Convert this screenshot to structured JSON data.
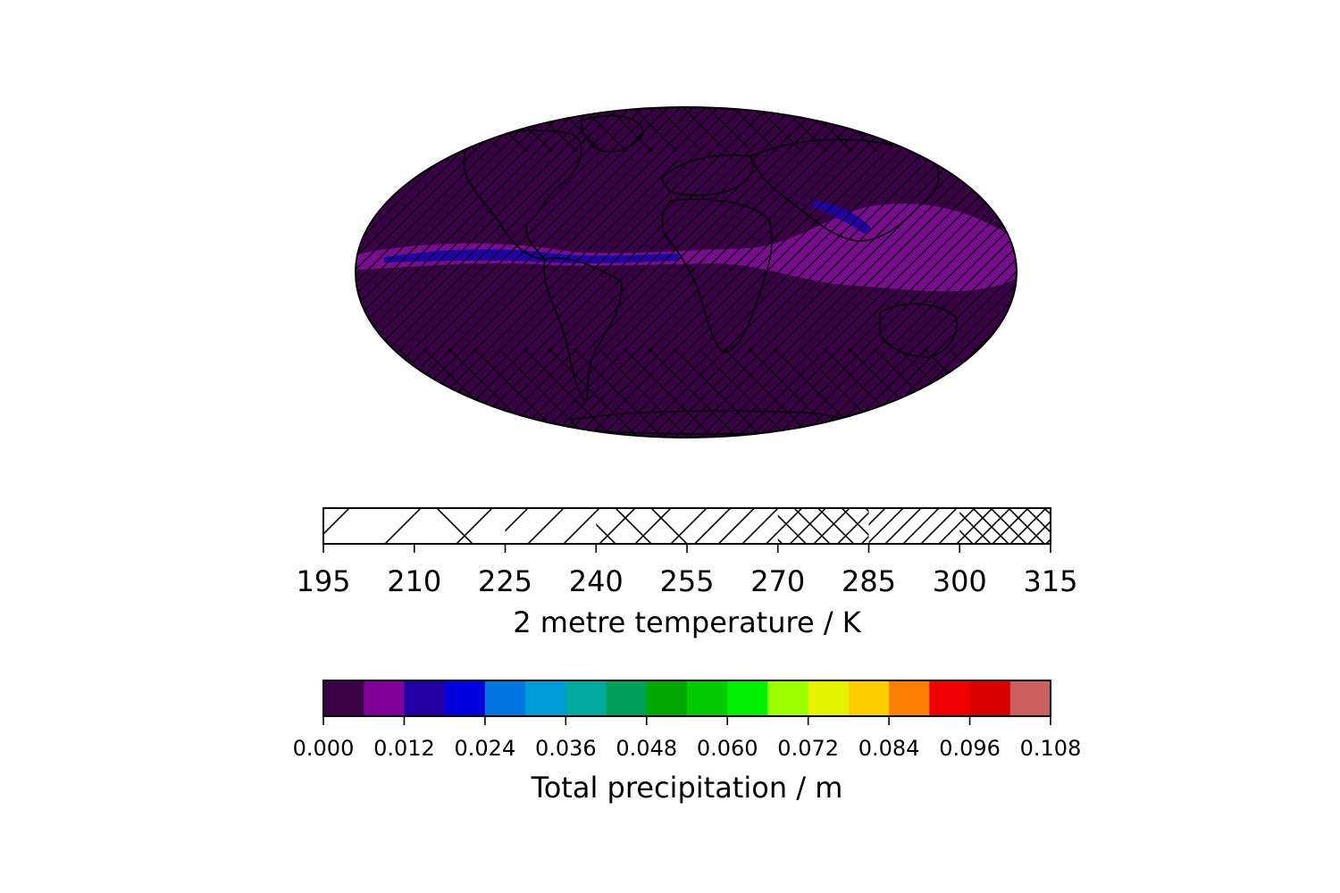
{
  "map": {
    "projection": "mollweide",
    "background_color": "#3a0046",
    "hatch_color": "#000000",
    "precip_band_color": "#800f96",
    "precip_high_color": "#2200a6"
  },
  "temperature_colorbar": {
    "label": "2 metre temperature / K",
    "ticks": [
      "195",
      "210",
      "225",
      "240",
      "255",
      "270",
      "285",
      "300",
      "315"
    ],
    "levels": [
      195,
      210,
      225,
      240,
      255,
      270,
      285,
      300,
      315
    ],
    "hatches": [
      "/",
      "x",
      "//",
      "xx",
      "///",
      "xxx",
      "////",
      "xxxx"
    ]
  },
  "precipitation_colorbar": {
    "label": "Total precipitation / m",
    "ticks": [
      "0.000",
      "0.012",
      "0.024",
      "0.036",
      "0.048",
      "0.060",
      "0.072",
      "0.084",
      "0.096",
      "0.108"
    ],
    "min": 0.0,
    "max": 0.108,
    "colors": [
      "#3b0046",
      "#80009a",
      "#2200a6",
      "#0000dc",
      "#0077e0",
      "#009ad6",
      "#00aa9e",
      "#00a05a",
      "#00a800",
      "#00cc00",
      "#00f000",
      "#9cff00",
      "#e6f200",
      "#ffcc00",
      "#ff8000",
      "#f00000",
      "#d80000",
      "#cc6060"
    ]
  }
}
